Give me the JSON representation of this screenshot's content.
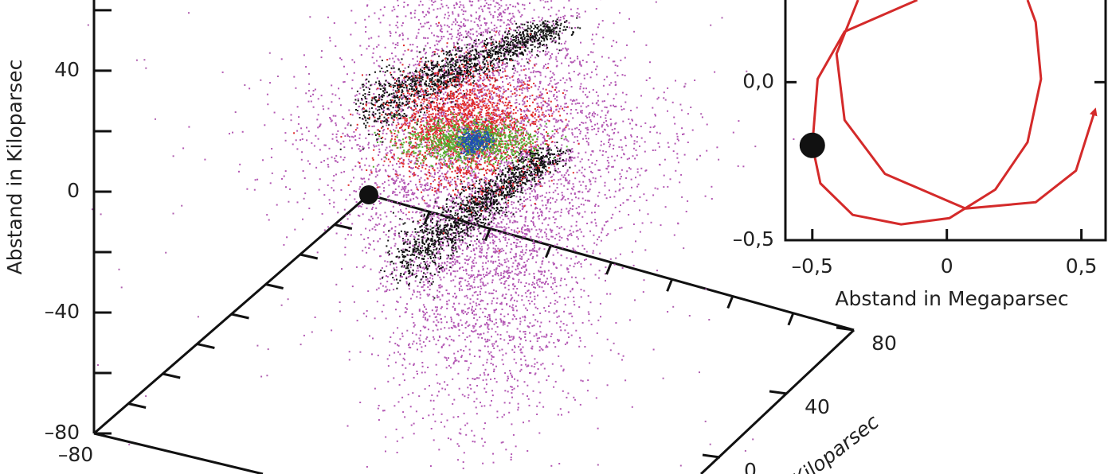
{
  "chart_data": [
    {
      "type": "scatter3d",
      "ylabel": "Abstand in Kiloparsec",
      "ylim": [
        -80,
        63.4
      ],
      "yticks": [
        40,
        0,
        {
          "value": -40,
          "label": "–40"
        },
        {
          "value": -80,
          "label": "–80"
        }
      ],
      "yticks_minor": [
        60,
        20,
        -20,
        -60
      ],
      "xticks": [
        {
          "value": -80,
          "label": "–80"
        }
      ],
      "zticks": [
        80,
        40,
        0
      ],
      "zlabel": "Kiloparsec"
    },
    {
      "type": "line",
      "xlabel": "Abstand in Megaparsec",
      "xlim": [
        -0.6,
        0.59
      ],
      "ylim": [
        -0.5,
        0.26
      ],
      "xticks": [
        {
          "value": -0.5,
          "label": "–0,5"
        },
        0,
        {
          "value": 0.5,
          "label": "0,5"
        }
      ],
      "yticks": [
        {
          "value": 0,
          "label": "0,0"
        },
        {
          "value": -0.5,
          "label": "–0,5"
        }
      ],
      "series": [
        {
          "color": "#d42a2a",
          "x": [
            -0.11,
            -0.38,
            -0.48,
            -0.5,
            -0.47,
            -0.35,
            -0.17,
            0.01,
            0.18,
            0.3,
            0.35,
            0.33,
            0.3,
            null,
            -0.33,
            -0.41,
            -0.38,
            -0.23,
            0.07,
            0.33,
            0.48,
            0.55
          ],
          "y": [
            0.26,
            0.16,
            0.01,
            -0.2,
            -0.32,
            -0.42,
            -0.45,
            -0.43,
            -0.34,
            -0.19,
            0.01,
            0.19,
            0.26,
            null,
            0.26,
            0.09,
            -0.12,
            -0.29,
            -0.4,
            -0.38,
            -0.28,
            -0.09
          ]
        }
      ],
      "marker": {
        "x": -0.5,
        "y": -0.2,
        "color": "#111"
      }
    }
  ]
}
